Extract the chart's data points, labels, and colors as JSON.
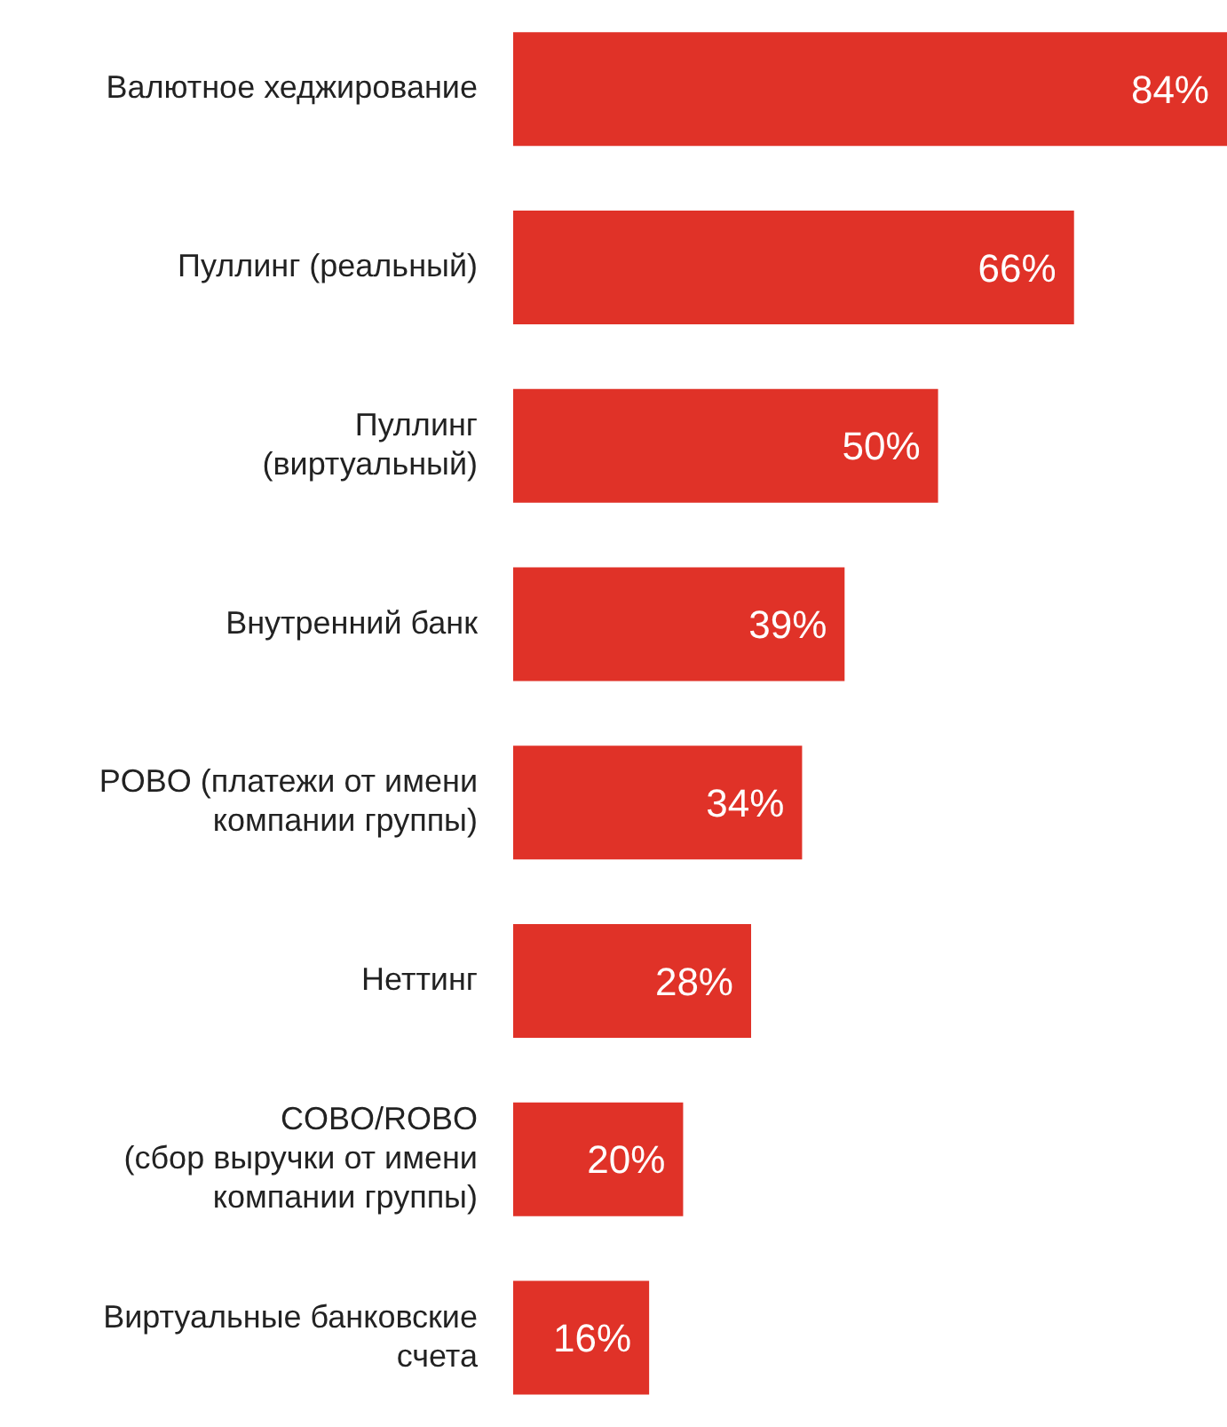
{
  "chart_data": {
    "type": "bar",
    "orientation": "horizontal",
    "categories": [
      "Валютное хеджирование",
      "Пуллинг (реальный)",
      "Пуллинг\n(виртуальный)",
      "Внутренний банк",
      "POBO (платежи от имени\nкомпании группы)",
      "Неттинг",
      "COBO/ROBO\n(сбор выручки от имени\nкомпании группы)",
      "Виртуальные банковские\nсчета"
    ],
    "values": [
      84,
      66,
      50,
      39,
      34,
      28,
      20,
      16
    ],
    "value_labels": [
      "84%",
      "66%",
      "50%",
      "39%",
      "34%",
      "28%",
      "20%",
      "16%"
    ],
    "color": "#e03228",
    "xlim": [
      0,
      84
    ],
    "grid": false
  }
}
